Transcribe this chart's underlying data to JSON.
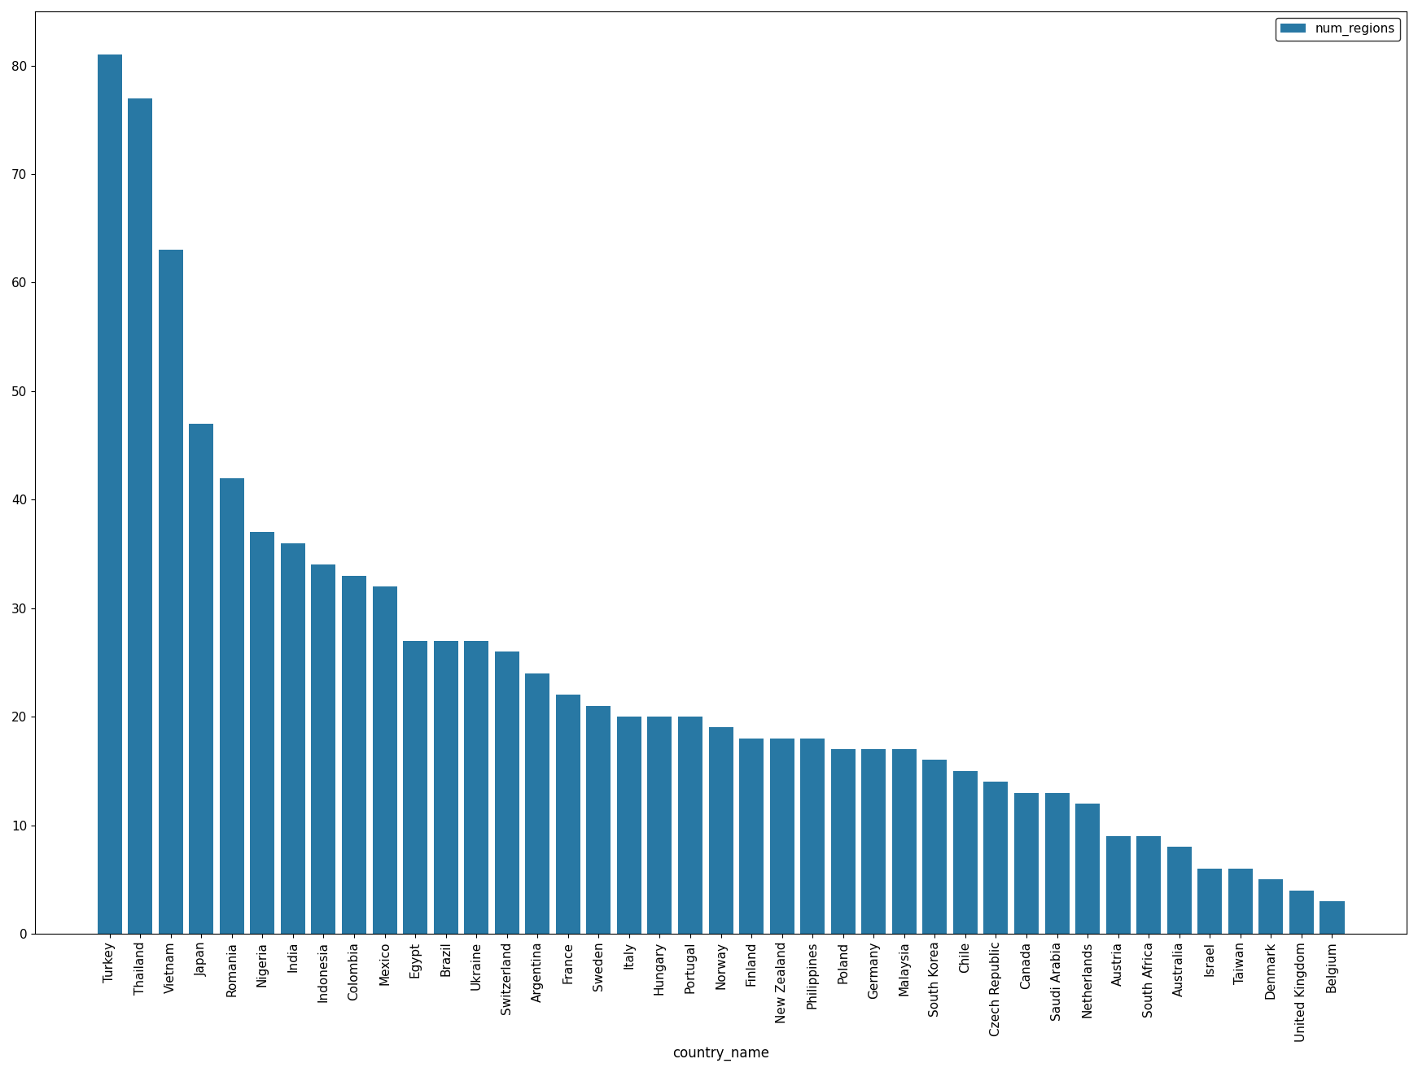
{
  "categories": [
    "Turkey",
    "Thailand",
    "Vietnam",
    "Japan",
    "Romania",
    "Nigeria",
    "India",
    "Indonesia",
    "Colombia",
    "Mexico",
    "Egypt",
    "Brazil",
    "Ukraine",
    "Switzerland",
    "Argentina",
    "France",
    "Sweden",
    "Italy",
    "Hungary",
    "Portugal",
    "Norway",
    "Finland",
    "New Zealand",
    "Philippines",
    "Poland",
    "Germany",
    "Malaysia",
    "South Korea",
    "Chile",
    "Czech Republic",
    "Canada",
    "Saudi Arabia",
    "Netherlands",
    "Austria",
    "South Africa",
    "Australia",
    "Israel",
    "Taiwan",
    "Denmark",
    "United Kingdom",
    "Belgium"
  ],
  "values": [
    81,
    77,
    63,
    47,
    42,
    37,
    36,
    34,
    33,
    32,
    27,
    27,
    27,
    26,
    24,
    22,
    21,
    20,
    20,
    20,
    19,
    18,
    18,
    18,
    17,
    17,
    17,
    16,
    15,
    14,
    13,
    13,
    12,
    9,
    9,
    8,
    6,
    6,
    5,
    4,
    3
  ],
  "bar_color": "#2878a4",
  "xlabel": "country_name",
  "ylabel": "",
  "legend_label": "num_regions",
  "background_color": "#ffffff",
  "tick_fontsize": 11,
  "label_fontsize": 12,
  "ylim_max": 85,
  "yticks": [
    0,
    10,
    20,
    30,
    40,
    50,
    60,
    70,
    80
  ]
}
